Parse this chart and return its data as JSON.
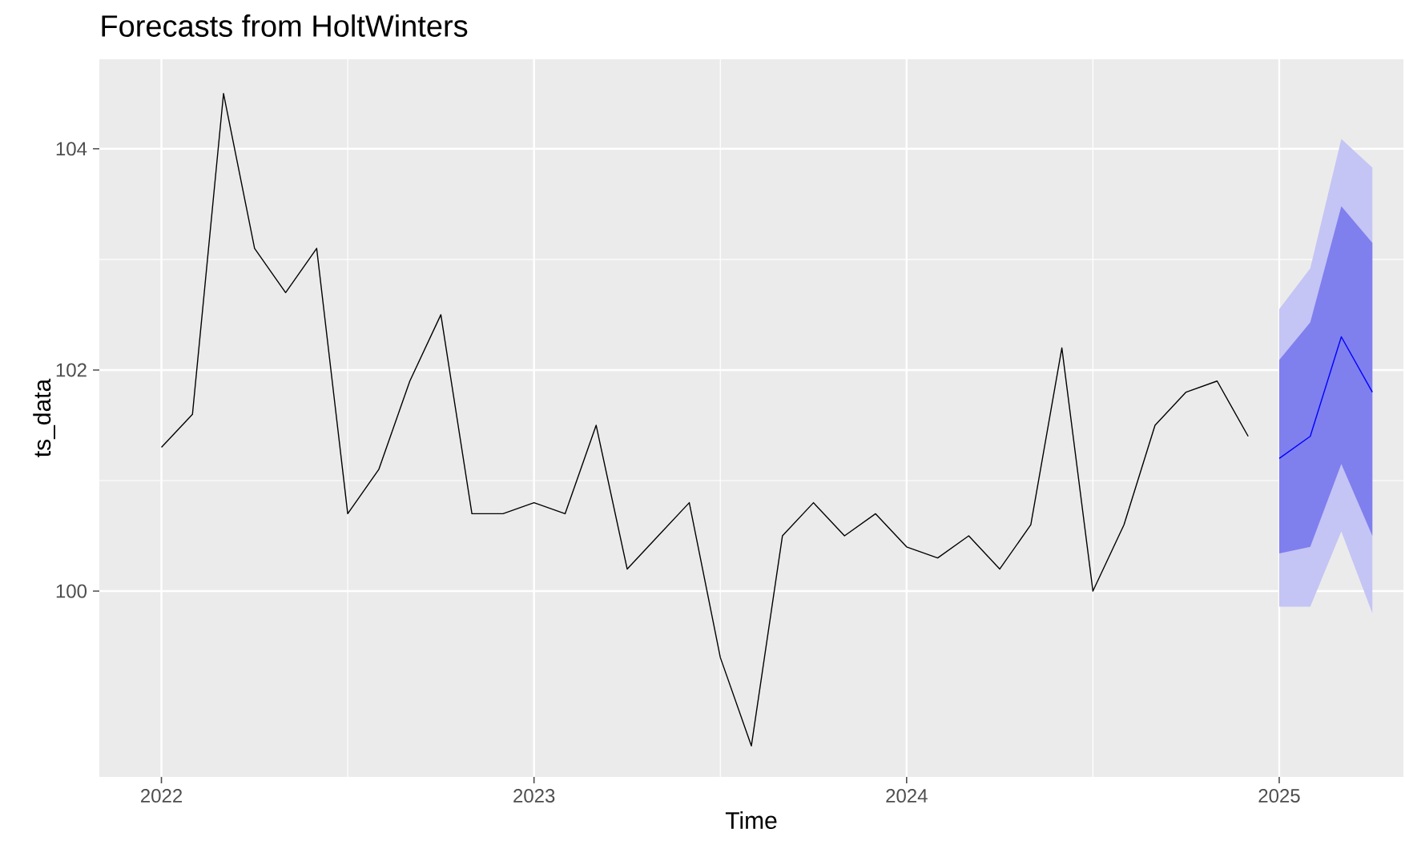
{
  "chart_data": {
    "type": "line",
    "title": "Forecasts from HoltWinters",
    "xlabel": "Time",
    "ylabel": "ts_data",
    "xlim": [
      "2021-11",
      "2025-05"
    ],
    "xticks": [
      "2022",
      "2023",
      "2024",
      "2025"
    ],
    "ylim": [
      98.32,
      104.81
    ],
    "yticks": [
      100,
      102,
      104
    ],
    "grid": true,
    "series": [
      {
        "color": "#000000",
        "x": [
          "2022-01",
          "2022-02",
          "2022-03",
          "2022-04",
          "2022-05",
          "2022-06",
          "2022-07",
          "2022-08",
          "2022-09",
          "2022-10",
          "2022-11",
          "2022-12",
          "2023-01",
          "2023-02",
          "2023-03",
          "2023-04",
          "2023-05",
          "2023-06",
          "2023-07",
          "2023-08",
          "2023-09",
          "2023-10",
          "2023-11",
          "2023-12",
          "2024-01",
          "2024-02",
          "2024-03",
          "2024-04",
          "2024-05",
          "2024-06",
          "2024-07",
          "2024-08",
          "2024-09",
          "2024-10",
          "2024-11",
          "2024-12"
        ],
        "values": [
          101.3,
          101.6,
          104.5,
          103.1,
          102.7,
          103.1,
          100.7,
          101.1,
          101.9,
          102.5,
          100.7,
          100.7,
          100.8,
          100.7,
          101.5,
          100.2,
          100.5,
          100.8,
          99.4,
          98.6,
          100.5,
          100.8,
          100.5,
          100.7,
          100.4,
          100.3,
          100.5,
          100.2,
          100.6,
          102.2,
          100.0,
          100.6,
          101.5,
          101.8,
          101.9,
          101.4
        ]
      },
      {
        "color": "#c4c4f5",
        "x": [
          "2025-01",
          "2025-02",
          "2025-03",
          "2025-04"
        ],
        "values": [
          null,
          null,
          null,
          null
        ],
        "lower": [
          99.86,
          99.86,
          100.54,
          99.8
        ],
        "upper": [
          102.55,
          102.92,
          104.09,
          103.83
        ]
      },
      {
        "color": "#7f7fee",
        "x": [
          "2025-01",
          "2025-02",
          "2025-03",
          "2025-04"
        ],
        "values": [
          null,
          null,
          null,
          null
        ],
        "lower": [
          100.34,
          100.4,
          101.15,
          100.5
        ],
        "upper": [
          102.09,
          102.43,
          103.48,
          103.15
        ]
      },
      {
        "color": "#0000ff",
        "x": [
          "2025-01",
          "2025-02",
          "2025-03",
          "2025-04"
        ],
        "values": [
          101.2,
          101.4,
          102.3,
          101.8
        ]
      }
    ]
  }
}
